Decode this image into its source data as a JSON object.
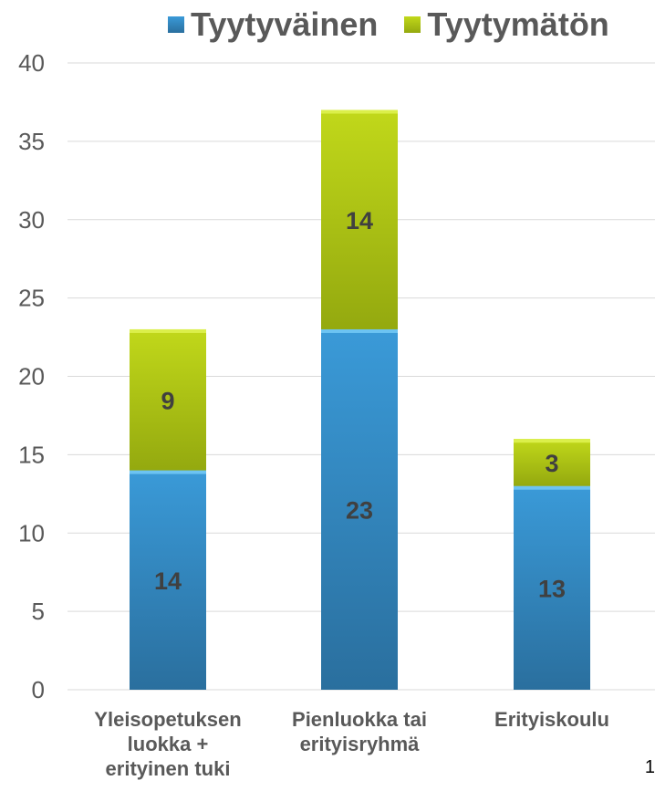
{
  "chart_data": {
    "type": "bar",
    "stacked": true,
    "categories": [
      "Yleisopetuksen luokka + erityinen tuki",
      "Pienluokka tai erityisryhmä",
      "Erityiskoulu"
    ],
    "category_lines": [
      [
        "Yleisopetuksen",
        "luokka +",
        "erityinen tuki"
      ],
      [
        "Pienluokka tai",
        "erityisryhmä"
      ],
      [
        "Erityiskoulu"
      ]
    ],
    "series": [
      {
        "name": "Tyytyväinen",
        "values": [
          14,
          23,
          13
        ],
        "color": "#2e8ccf"
      },
      {
        "name": "Tyytymätön",
        "values": [
          9,
          14,
          3
        ],
        "color": "#a9c00f"
      }
    ],
    "ylim": [
      0,
      40
    ],
    "yticks": [
      0,
      5,
      10,
      15,
      20,
      25,
      30,
      35,
      40
    ],
    "grid": true,
    "legend_position": "top"
  },
  "page_number": "1"
}
